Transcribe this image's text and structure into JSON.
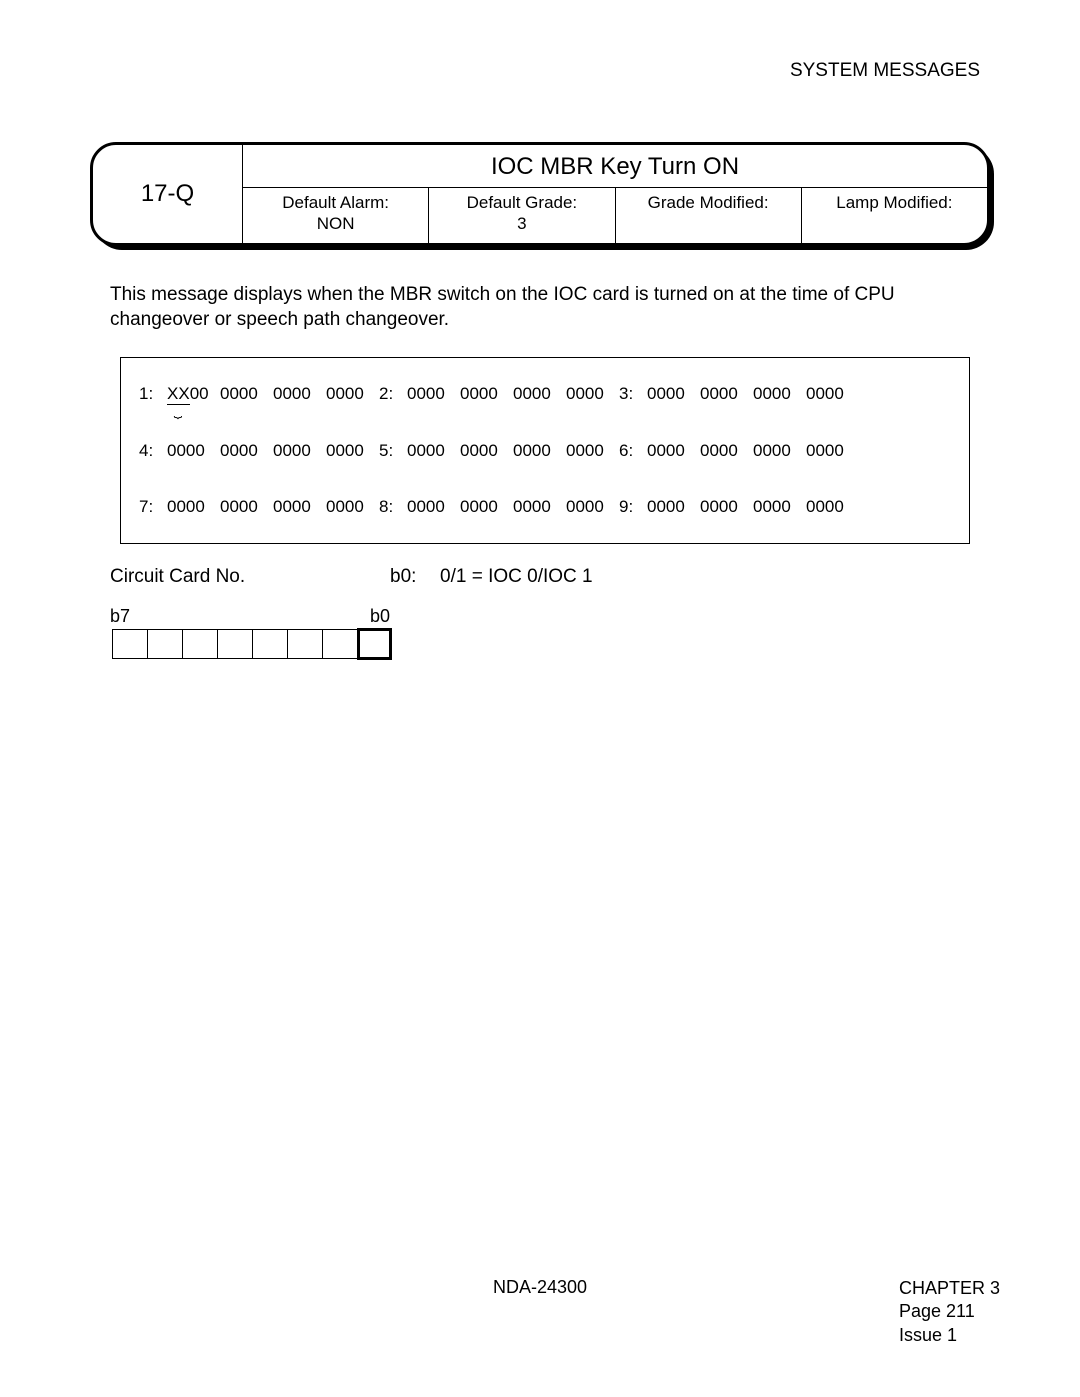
{
  "header": {
    "section_title": "SYSTEM MESSAGES"
  },
  "message_box": {
    "code": "17-Q",
    "title": "IOC MBR Key Turn ON",
    "fields": [
      {
        "label": "Default Alarm:",
        "value": "NON"
      },
      {
        "label": "Default Grade:",
        "value": "3"
      },
      {
        "label": "Grade Modified:",
        "value": ""
      },
      {
        "label": "Lamp Modified:",
        "value": ""
      }
    ],
    "border_color": "#000000",
    "background_color": "#ffffff",
    "shadow_color": "#000000",
    "border_radius": 26
  },
  "description": "This message displays when the MBR switch on the IOC card is turned on at the time of CPU changeover or speech path changeover.",
  "data_block": {
    "rows": [
      [
        {
          "label": "1:",
          "cells": [
            "XX00",
            "0000",
            "0000",
            "0000"
          ],
          "first_underlined": true
        },
        {
          "label": "2:",
          "cells": [
            "0000",
            "0000",
            "0000",
            "0000"
          ]
        },
        {
          "label": "3:",
          "cells": [
            "0000",
            "0000",
            "0000",
            "0000"
          ]
        }
      ],
      [
        {
          "label": "4:",
          "cells": [
            "0000",
            "0000",
            "0000",
            "0000"
          ]
        },
        {
          "label": "5:",
          "cells": [
            "0000",
            "0000",
            "0000",
            "0000"
          ]
        },
        {
          "label": "6:",
          "cells": [
            "0000",
            "0000",
            "0000",
            "0000"
          ]
        }
      ],
      [
        {
          "label": "7:",
          "cells": [
            "0000",
            "0000",
            "0000",
            "0000"
          ]
        },
        {
          "label": "8:",
          "cells": [
            "0000",
            "0000",
            "0000",
            "0000"
          ]
        },
        {
          "label": "9:",
          "cells": [
            "0000",
            "0000",
            "0000",
            "0000"
          ]
        }
      ]
    ],
    "border_color": "#000000",
    "font_size": 17
  },
  "circuit": {
    "title": "Circuit Card No.",
    "bit_label_b0": "b0:",
    "bit_def_b0": "0/1 = IOC 0/IOC 1",
    "b7_label": "b7",
    "b0_label": "b0",
    "byte_bits": 8,
    "highlight_bit": 0,
    "cell_border_color": "#000000",
    "highlight_border_width": 3
  },
  "footer": {
    "doc_id": "NDA-24300",
    "chapter": "CHAPTER 3",
    "page": "Page 211",
    "issue": "Issue 1"
  },
  "colors": {
    "text": "#000000",
    "background": "#ffffff"
  },
  "typography": {
    "base_font_size": 19,
    "title_font_size": 24,
    "field_font_size": 17,
    "footer_font_size": 18
  }
}
